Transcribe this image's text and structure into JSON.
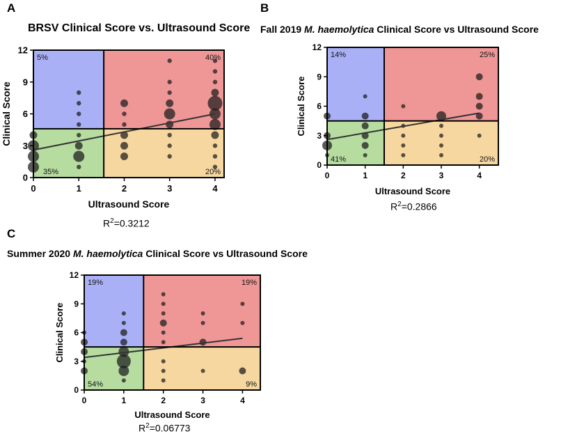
{
  "colors": {
    "upper_left": "#aab0f5",
    "upper_right": "#ef9797",
    "lower_left": "#b6dca0",
    "lower_right": "#f6d7a0",
    "dot": "#1a1a1a",
    "trend": "#333333"
  },
  "chart_data": [
    {
      "panel": "A",
      "type": "scatter",
      "title": "BRSV Clinical Score vs. Ultrasound Score",
      "title_italic": "",
      "title_suffix": "",
      "xlabel": "Ultrasound Score",
      "ylabel": "Clinical Score",
      "xlim": [
        0,
        4.2
      ],
      "ylim": [
        0,
        12
      ],
      "xticks": [
        "0",
        "1",
        "2",
        "3",
        "4"
      ],
      "yticks": [
        "0",
        "3",
        "6",
        "9",
        "12"
      ],
      "quadrant_x_threshold": 1.55,
      "quadrant_y_threshold": 4.6,
      "quadrant_labels": {
        "upper_left": "5%",
        "upper_right": "40%",
        "lower_left": "35%",
        "lower_right": "20%"
      },
      "trend": {
        "x": [
          0,
          4
        ],
        "y": [
          2.6,
          6.0
        ]
      },
      "r2_base": "R",
      "r2_exp": "2",
      "r2_value": "=0.3212",
      "points": [
        {
          "x": 0,
          "y": 1,
          "size": 3
        },
        {
          "x": 0,
          "y": 2,
          "size": 3
        },
        {
          "x": 0,
          "y": 3,
          "size": 3
        },
        {
          "x": 0,
          "y": 4,
          "size": 2
        },
        {
          "x": 1,
          "y": 1,
          "size": 1
        },
        {
          "x": 1,
          "y": 2,
          "size": 3
        },
        {
          "x": 1,
          "y": 3,
          "size": 2
        },
        {
          "x": 1,
          "y": 4,
          "size": 1
        },
        {
          "x": 1,
          "y": 5,
          "size": 1
        },
        {
          "x": 1,
          "y": 6,
          "size": 1
        },
        {
          "x": 1,
          "y": 7,
          "size": 1
        },
        {
          "x": 1,
          "y": 8,
          "size": 1
        },
        {
          "x": 2,
          "y": 2,
          "size": 2
        },
        {
          "x": 2,
          "y": 3,
          "size": 2
        },
        {
          "x": 2,
          "y": 4,
          "size": 2
        },
        {
          "x": 2,
          "y": 5,
          "size": 1
        },
        {
          "x": 2,
          "y": 6,
          "size": 1
        },
        {
          "x": 2,
          "y": 7,
          "size": 2
        },
        {
          "x": 3,
          "y": 2,
          "size": 1
        },
        {
          "x": 3,
          "y": 3,
          "size": 1
        },
        {
          "x": 3,
          "y": 4,
          "size": 1
        },
        {
          "x": 3,
          "y": 5,
          "size": 2
        },
        {
          "x": 3,
          "y": 6,
          "size": 3
        },
        {
          "x": 3,
          "y": 7,
          "size": 2
        },
        {
          "x": 3,
          "y": 8,
          "size": 1
        },
        {
          "x": 3,
          "y": 9,
          "size": 1
        },
        {
          "x": 3,
          "y": 11,
          "size": 1
        },
        {
          "x": 4,
          "y": 1,
          "size": 1
        },
        {
          "x": 4,
          "y": 2,
          "size": 1
        },
        {
          "x": 4,
          "y": 3,
          "size": 1
        },
        {
          "x": 4,
          "y": 4,
          "size": 2
        },
        {
          "x": 4,
          "y": 5,
          "size": 3
        },
        {
          "x": 4,
          "y": 6,
          "size": 3
        },
        {
          "x": 4,
          "y": 7,
          "size": 4
        },
        {
          "x": 4,
          "y": 8,
          "size": 2
        },
        {
          "x": 4,
          "y": 9,
          "size": 1
        },
        {
          "x": 4,
          "y": 10,
          "size": 1
        },
        {
          "x": 4,
          "y": 11,
          "size": 1
        }
      ]
    },
    {
      "panel": "B",
      "type": "scatter",
      "title": "Fall 2019 ",
      "title_italic": "M. haemolytica",
      "title_suffix": " Clinical Score vs Ultrasound Score",
      "xlabel": "Ultrasound Score",
      "ylabel": "Clinical Score",
      "xlim": [
        0,
        4.5
      ],
      "ylim": [
        0,
        12
      ],
      "xticks": [
        "0",
        "1",
        "2",
        "3",
        "4"
      ],
      "yticks": [
        "0",
        "3",
        "6",
        "9",
        "12"
      ],
      "quadrant_x_threshold": 1.5,
      "quadrant_y_threshold": 4.5,
      "quadrant_labels": {
        "upper_left": "14%",
        "upper_right": "25%",
        "lower_left": "41%",
        "lower_right": "20%"
      },
      "trend": {
        "x": [
          0,
          4
        ],
        "y": [
          2.6,
          5.3
        ]
      },
      "r2_base": "R",
      "r2_exp": "2",
      "r2_value": "=0.2866",
      "points": [
        {
          "x": 0,
          "y": 1,
          "size": 1
        },
        {
          "x": 0,
          "y": 2,
          "size": 3
        },
        {
          "x": 0,
          "y": 3,
          "size": 2
        },
        {
          "x": 0,
          "y": 5,
          "size": 2
        },
        {
          "x": 1,
          "y": 1,
          "size": 1
        },
        {
          "x": 1,
          "y": 2,
          "size": 2
        },
        {
          "x": 1,
          "y": 3,
          "size": 2
        },
        {
          "x": 1,
          "y": 4,
          "size": 2
        },
        {
          "x": 1,
          "y": 5,
          "size": 2
        },
        {
          "x": 1,
          "y": 7,
          "size": 1
        },
        {
          "x": 2,
          "y": 1,
          "size": 1
        },
        {
          "x": 2,
          "y": 2,
          "size": 1
        },
        {
          "x": 2,
          "y": 3,
          "size": 1
        },
        {
          "x": 2,
          "y": 4,
          "size": 1
        },
        {
          "x": 2,
          "y": 6,
          "size": 1
        },
        {
          "x": 3,
          "y": 1,
          "size": 1
        },
        {
          "x": 3,
          "y": 2,
          "size": 1
        },
        {
          "x": 3,
          "y": 3,
          "size": 1
        },
        {
          "x": 3,
          "y": 4,
          "size": 1
        },
        {
          "x": 3,
          "y": 5,
          "size": 3
        },
        {
          "x": 4,
          "y": 3,
          "size": 1
        },
        {
          "x": 4,
          "y": 5,
          "size": 2
        },
        {
          "x": 4,
          "y": 6,
          "size": 2
        },
        {
          "x": 4,
          "y": 7,
          "size": 2
        },
        {
          "x": 4,
          "y": 9,
          "size": 2
        }
      ]
    },
    {
      "panel": "C",
      "type": "scatter",
      "title": "Summer 2020 ",
      "title_italic": "M. haemolytica",
      "title_suffix": " Clinical Score vs Ultrasound Score",
      "xlabel": "Ultrasound Score",
      "ylabel": "Clinical Score",
      "xlim": [
        0,
        4.45
      ],
      "ylim": [
        0,
        12
      ],
      "xticks": [
        "0",
        "1",
        "2",
        "3",
        "4"
      ],
      "yticks": [
        "0",
        "3",
        "6",
        "9",
        "12"
      ],
      "quadrant_x_threshold": 1.5,
      "quadrant_y_threshold": 4.5,
      "quadrant_labels": {
        "upper_left": "19%",
        "upper_right": "19%",
        "lower_left": "54%",
        "lower_right": "9%"
      },
      "trend": {
        "x": [
          0,
          4
        ],
        "y": [
          3.4,
          5.4
        ]
      },
      "r2_base": "R",
      "r2_exp": "2",
      "r2_value": "=0.06773",
      "points": [
        {
          "x": 0,
          "y": 2,
          "size": 2
        },
        {
          "x": 0,
          "y": 3,
          "size": 1
        },
        {
          "x": 0,
          "y": 4,
          "size": 2
        },
        {
          "x": 0,
          "y": 5,
          "size": 2
        },
        {
          "x": 0,
          "y": 6,
          "size": 1
        },
        {
          "x": 1,
          "y": 1,
          "size": 1
        },
        {
          "x": 1,
          "y": 2,
          "size": 3
        },
        {
          "x": 1,
          "y": 3,
          "size": 4
        },
        {
          "x": 1,
          "y": 4,
          "size": 3
        },
        {
          "x": 1,
          "y": 5,
          "size": 2
        },
        {
          "x": 1,
          "y": 6,
          "size": 2
        },
        {
          "x": 1,
          "y": 7,
          "size": 1
        },
        {
          "x": 1,
          "y": 8,
          "size": 1
        },
        {
          "x": 2,
          "y": 1,
          "size": 1
        },
        {
          "x": 2,
          "y": 2,
          "size": 1
        },
        {
          "x": 2,
          "y": 3,
          "size": 1
        },
        {
          "x": 2,
          "y": 5,
          "size": 1
        },
        {
          "x": 2,
          "y": 6,
          "size": 1
        },
        {
          "x": 2,
          "y": 7,
          "size": 2
        },
        {
          "x": 2,
          "y": 8,
          "size": 1
        },
        {
          "x": 2,
          "y": 9,
          "size": 1
        },
        {
          "x": 2,
          "y": 10,
          "size": 1
        },
        {
          "x": 3,
          "y": 2,
          "size": 1
        },
        {
          "x": 3,
          "y": 5,
          "size": 2
        },
        {
          "x": 3,
          "y": 7,
          "size": 1
        },
        {
          "x": 3,
          "y": 8,
          "size": 1
        },
        {
          "x": 4,
          "y": 2,
          "size": 2
        },
        {
          "x": 4,
          "y": 7,
          "size": 1
        },
        {
          "x": 4,
          "y": 9,
          "size": 1
        }
      ]
    }
  ]
}
